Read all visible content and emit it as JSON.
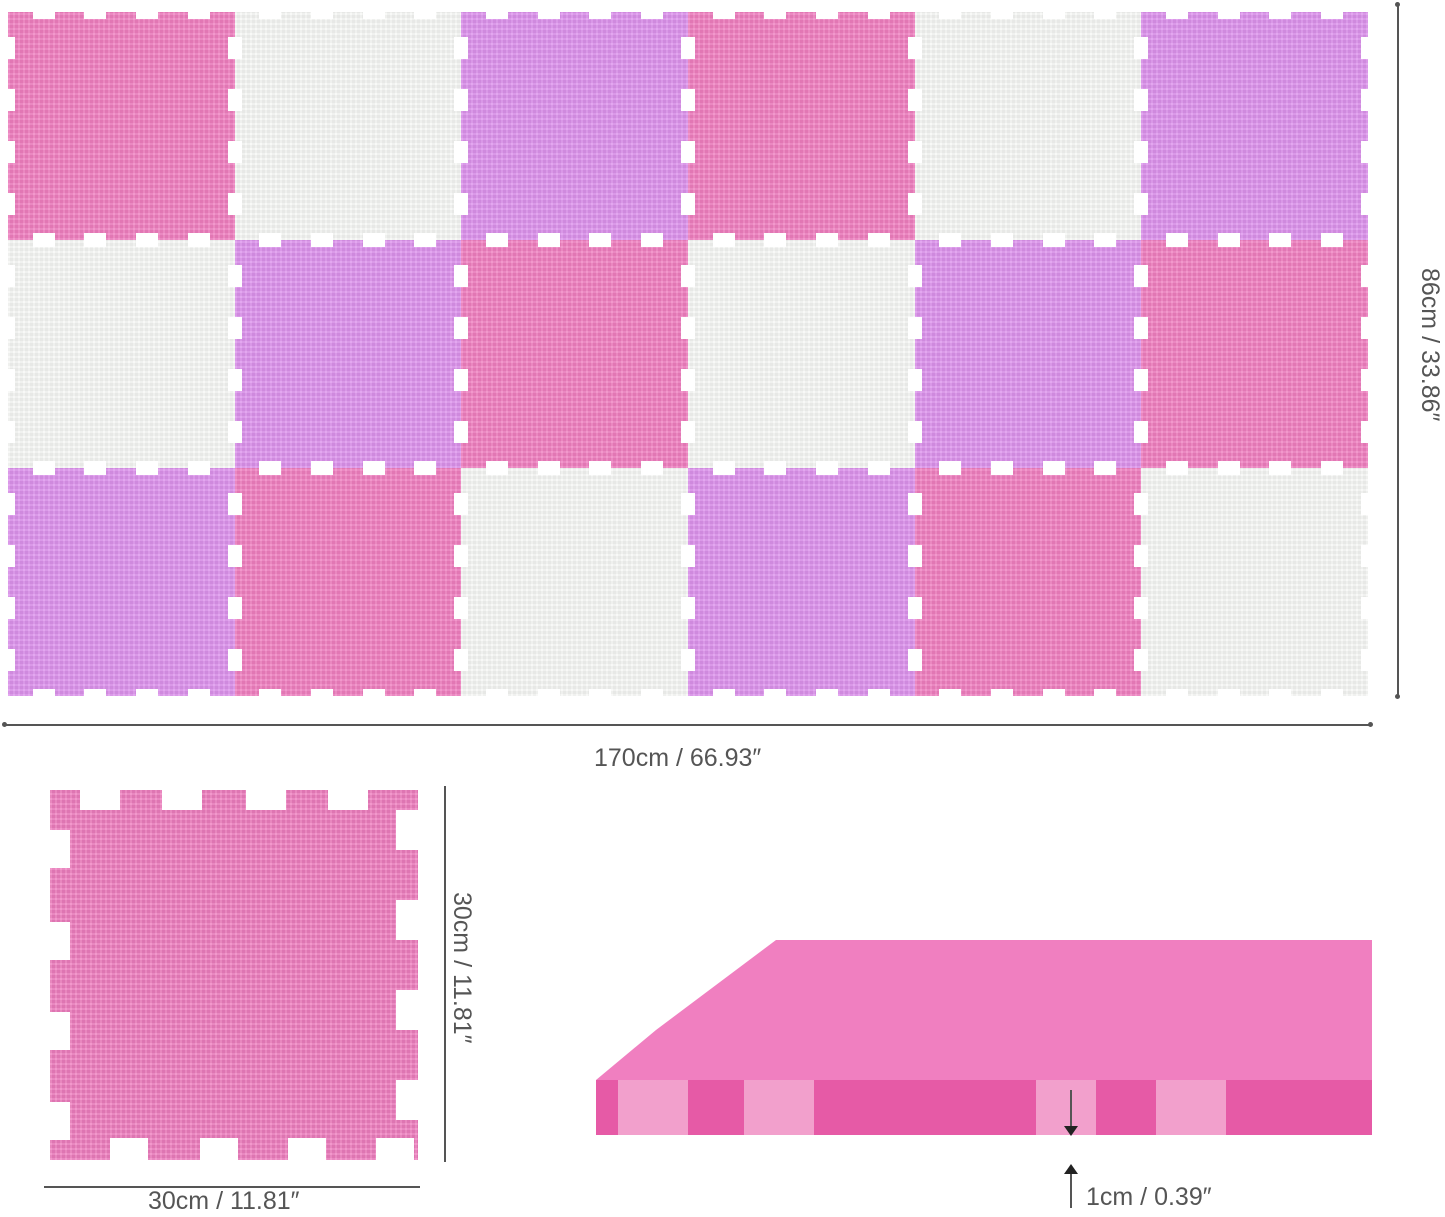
{
  "product": {
    "colors": {
      "pink": "#f07fc0",
      "lilac": "#dd92ec",
      "white": "#f6f7f5"
    },
    "assembled_mat": {
      "rows": [
        [
          "pink",
          "white",
          "lilac",
          "pink",
          "white",
          "lilac"
        ],
        [
          "white",
          "lilac",
          "pink",
          "white",
          "lilac",
          "pink"
        ],
        [
          "lilac",
          "pink",
          "white",
          "lilac",
          "pink",
          "white"
        ]
      ]
    }
  },
  "dimensions": {
    "width_label": "170cm / 66.93″",
    "height_label": "86cm / 33.86″",
    "tile_width_label": "30cm / 11.81″",
    "tile_height_label": "30cm / 11.81″",
    "thickness_label": "1cm / 0.39″"
  }
}
